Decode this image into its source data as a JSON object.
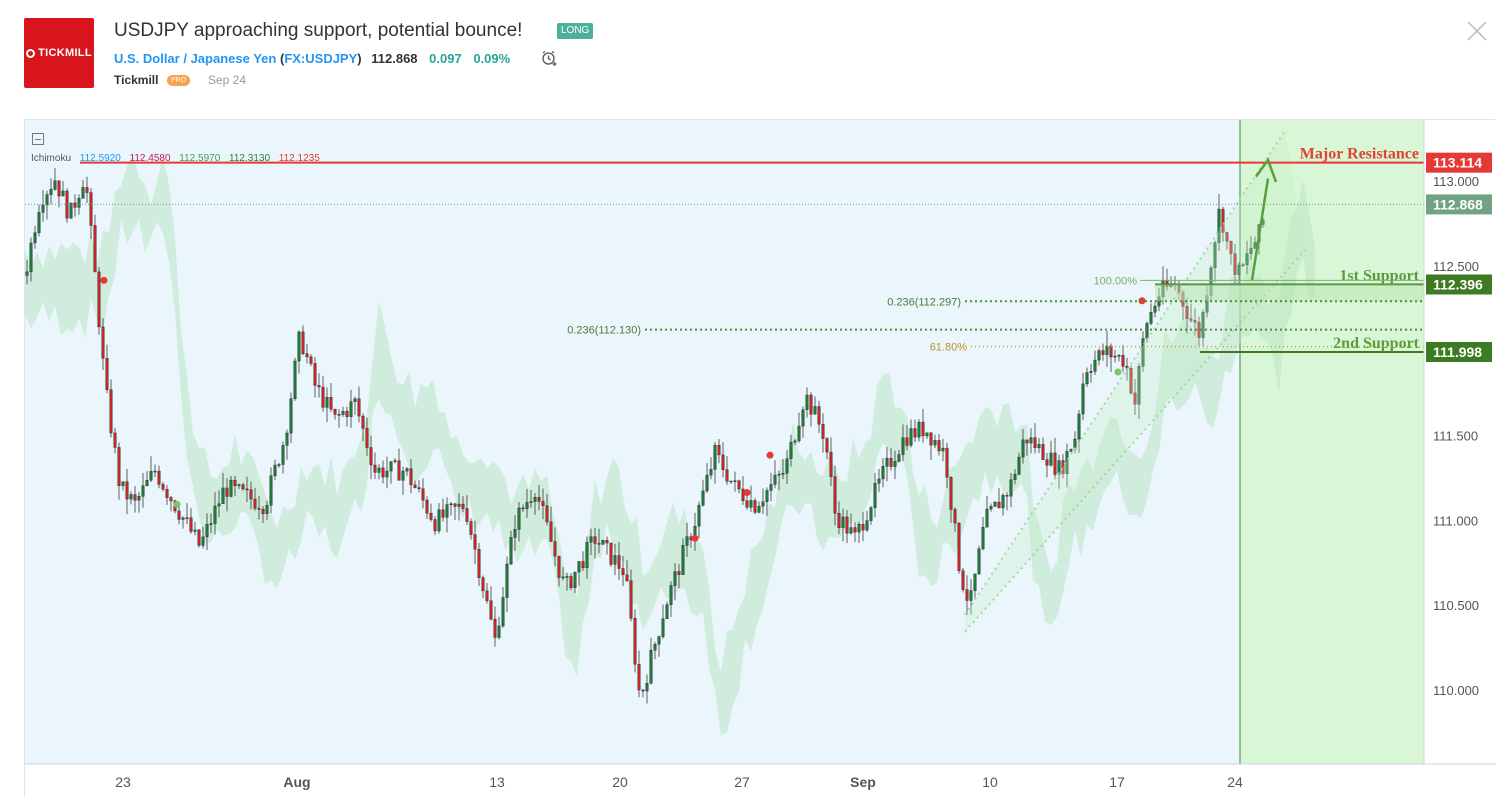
{
  "header": {
    "logo_text": "TICKMILL",
    "title": "USDJPY approaching support, potential bounce!",
    "badge": "LONG",
    "symbol_name": "U.S. Dollar / Japanese Yen",
    "symbol_code": "FX:USDJPY",
    "price": "112.868",
    "change": "0.097",
    "change_pct": "0.09%",
    "author": "Tickmill",
    "author_badge": "PRO",
    "date": "Sep 24"
  },
  "indicator": {
    "name": "Ichimoku",
    "values": [
      "112.5920",
      "112.4580",
      "112.5970",
      "112.3130",
      "112.1235"
    ],
    "colors": [
      "#2196f3",
      "#c2185b",
      "#43a047",
      "#2e7d32",
      "#e53935"
    ]
  },
  "annotations": {
    "major_resistance": "Major Resistance",
    "first_support": "1st Support",
    "second_support": "2nd Support",
    "fib_100": "100.00%",
    "fib_0236_a": "0.236(112.297)",
    "fib_0236_b": "0.236(112.130)",
    "fib_618": "61.80%"
  },
  "price_labels": [
    {
      "text": "113.114",
      "value": 113.114,
      "color": "#e53935"
    },
    {
      "text": "112.868",
      "value": 112.868,
      "color": "#6fa383"
    },
    {
      "text": "112.396",
      "value": 112.396,
      "color": "#3c7a23"
    },
    {
      "text": "111.998",
      "value": 111.998,
      "color": "#3c7a23"
    }
  ],
  "chart_data": {
    "type": "candlestick",
    "y_ticks": [
      "113.000",
      "112.500",
      "111.500",
      "111.000",
      "110.500",
      "110.000"
    ],
    "y_tick_values": [
      113.0,
      112.5,
      111.5,
      111.0,
      110.5,
      110.0
    ],
    "x_ticks": [
      "23",
      "Aug",
      "13",
      "20",
      "27",
      "Sep",
      "10",
      "17",
      "24"
    ],
    "ylim": [
      109.8,
      113.35
    ],
    "levels": {
      "major_resistance": 113.114,
      "current": 112.868,
      "first_support": 112.396,
      "second_support": 111.998,
      "fib_0236_a": 112.297,
      "fib_0236_b": 112.13,
      "fib_618": 112.05
    },
    "colors": {
      "up": "#26a69a",
      "up_fill": "#1f7a3a",
      "down": "#c62828",
      "bg": "#eaf6fb",
      "forecast_bg": "#d9f7d6",
      "resistance": "#e53935",
      "support": "#3c7a23"
    }
  }
}
